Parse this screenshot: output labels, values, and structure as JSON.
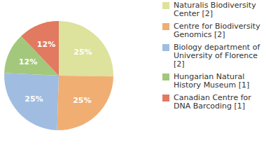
{
  "chart_data": {
    "type": "pie",
    "categories": [
      "Naturalis Biodiversity Center [2]",
      "Centre for Biodiversity Genomics [2]",
      "Biology department of University of Florence [2]",
      "Hungarian Natural History Museum [1]",
      "Canadian Centre for DNA Barcoding [1]"
    ],
    "values": [
      25,
      25,
      25,
      12,
      12
    ],
    "value_labels": [
      "25%",
      "25%",
      "25%",
      "12%",
      "12%"
    ],
    "colors": [
      "#dde29c",
      "#f0ae72",
      "#a0bde1",
      "#a3c87c",
      "#e17a60"
    ],
    "data_labels": true,
    "legend": "right"
  }
}
